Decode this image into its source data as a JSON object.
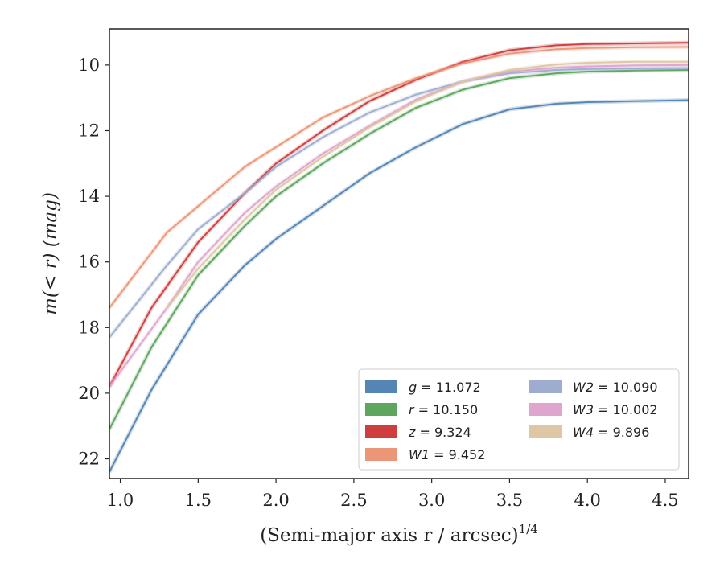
{
  "chart_data": {
    "type": "line",
    "xlabel": "(Semi-major axis r / arcsec)",
    "xlabel_sup": "1/4",
    "ylabel": "m(< r) (mag)",
    "xlim": [
      0.93,
      4.65
    ],
    "ylim": [
      22.6,
      8.9
    ],
    "y_inverted": true,
    "xticks": [
      1.0,
      1.5,
      2.0,
      2.5,
      3.0,
      3.5,
      4.0,
      4.5
    ],
    "xtick_labels": [
      "1.0",
      "1.5",
      "2.0",
      "2.5",
      "3.0",
      "3.5",
      "4.0",
      "4.5"
    ],
    "yticks": [
      10,
      12,
      14,
      16,
      18,
      20,
      22
    ],
    "ytick_labels": [
      "10",
      "12",
      "14",
      "16",
      "18",
      "20",
      "22"
    ],
    "grid": false,
    "legend_position": "lower-right",
    "legend_columns": 2,
    "series": [
      {
        "name": "g = 11.072",
        "band": "g",
        "value": "11.072",
        "color": "#4c7eb0",
        "x": [
          0.93,
          1.2,
          1.5,
          1.8,
          2.0,
          2.3,
          2.6,
          2.9,
          3.2,
          3.5,
          3.8,
          4.0,
          4.3,
          4.65
        ],
        "y": [
          22.4,
          19.9,
          17.6,
          16.1,
          15.3,
          14.3,
          13.3,
          12.5,
          11.8,
          11.35,
          11.18,
          11.13,
          11.1,
          11.07
        ]
      },
      {
        "name": "r = 10.150",
        "band": "r",
        "value": "10.150",
        "color": "#55a055",
        "x": [
          0.93,
          1.2,
          1.5,
          1.8,
          2.0,
          2.3,
          2.6,
          2.9,
          3.2,
          3.5,
          3.8,
          4.0,
          4.3,
          4.65
        ],
        "y": [
          21.1,
          18.6,
          16.4,
          14.9,
          14.0,
          13.0,
          12.1,
          11.3,
          10.75,
          10.4,
          10.25,
          10.2,
          10.17,
          10.15
        ]
      },
      {
        "name": "z = 9.324",
        "band": "z",
        "value": "9.324",
        "color": "#cc3333",
        "x": [
          0.93,
          1.2,
          1.5,
          1.8,
          2.0,
          2.3,
          2.6,
          2.9,
          3.2,
          3.5,
          3.8,
          4.0,
          4.3,
          4.65
        ],
        "y": [
          19.8,
          17.4,
          15.4,
          13.9,
          13.0,
          12.0,
          11.1,
          10.45,
          9.9,
          9.55,
          9.4,
          9.36,
          9.34,
          9.32
        ]
      },
      {
        "name": "W1 = 9.452",
        "band": "W1",
        "value": "9.452",
        "color": "#ea9070",
        "x": [
          0.93,
          1.3,
          1.5,
          1.8,
          2.0,
          2.3,
          2.6,
          2.9,
          3.2,
          3.5,
          3.8,
          4.0,
          4.3,
          4.65
        ],
        "y": [
          17.4,
          15.1,
          14.3,
          13.1,
          12.5,
          11.6,
          10.95,
          10.4,
          9.95,
          9.65,
          9.52,
          9.48,
          9.46,
          9.45
        ]
      },
      {
        "name": "W2 = 10.090",
        "band": "W2",
        "value": "10.090",
        "color": "#99a8cc",
        "x": [
          0.93,
          1.3,
          1.5,
          1.8,
          2.0,
          2.3,
          2.6,
          2.9,
          3.2,
          3.5,
          3.8,
          4.0,
          4.3,
          4.65
        ],
        "y": [
          18.3,
          16.1,
          15.0,
          13.9,
          13.1,
          12.2,
          11.45,
          10.9,
          10.5,
          10.25,
          10.15,
          10.12,
          10.1,
          10.09
        ]
      },
      {
        "name": "W3 = 10.002",
        "band": "W3",
        "value": "10.002",
        "color": "#dea0cc",
        "x": [
          0.93,
          1.3,
          1.5,
          1.8,
          2.0,
          2.3,
          2.6,
          2.9,
          3.2,
          3.5,
          3.8,
          4.0,
          4.3,
          4.65
        ],
        "y": [
          19.8,
          17.4,
          16.0,
          14.5,
          13.7,
          12.7,
          11.85,
          11.05,
          10.5,
          10.2,
          10.08,
          10.04,
          10.01,
          10.0
        ]
      },
      {
        "name": "W4 = 9.896",
        "band": "W4",
        "value": "9.896",
        "color": "#dcc4a0",
        "x": [
          1.3,
          1.5,
          1.8,
          2.0,
          2.3,
          2.6,
          2.9,
          3.2,
          3.5,
          3.8,
          4.0,
          4.3,
          4.65
        ],
        "y": [
          17.4,
          16.2,
          14.7,
          13.8,
          12.8,
          11.9,
          11.1,
          10.5,
          10.15,
          9.98,
          9.93,
          9.9,
          9.9
        ]
      }
    ]
  }
}
